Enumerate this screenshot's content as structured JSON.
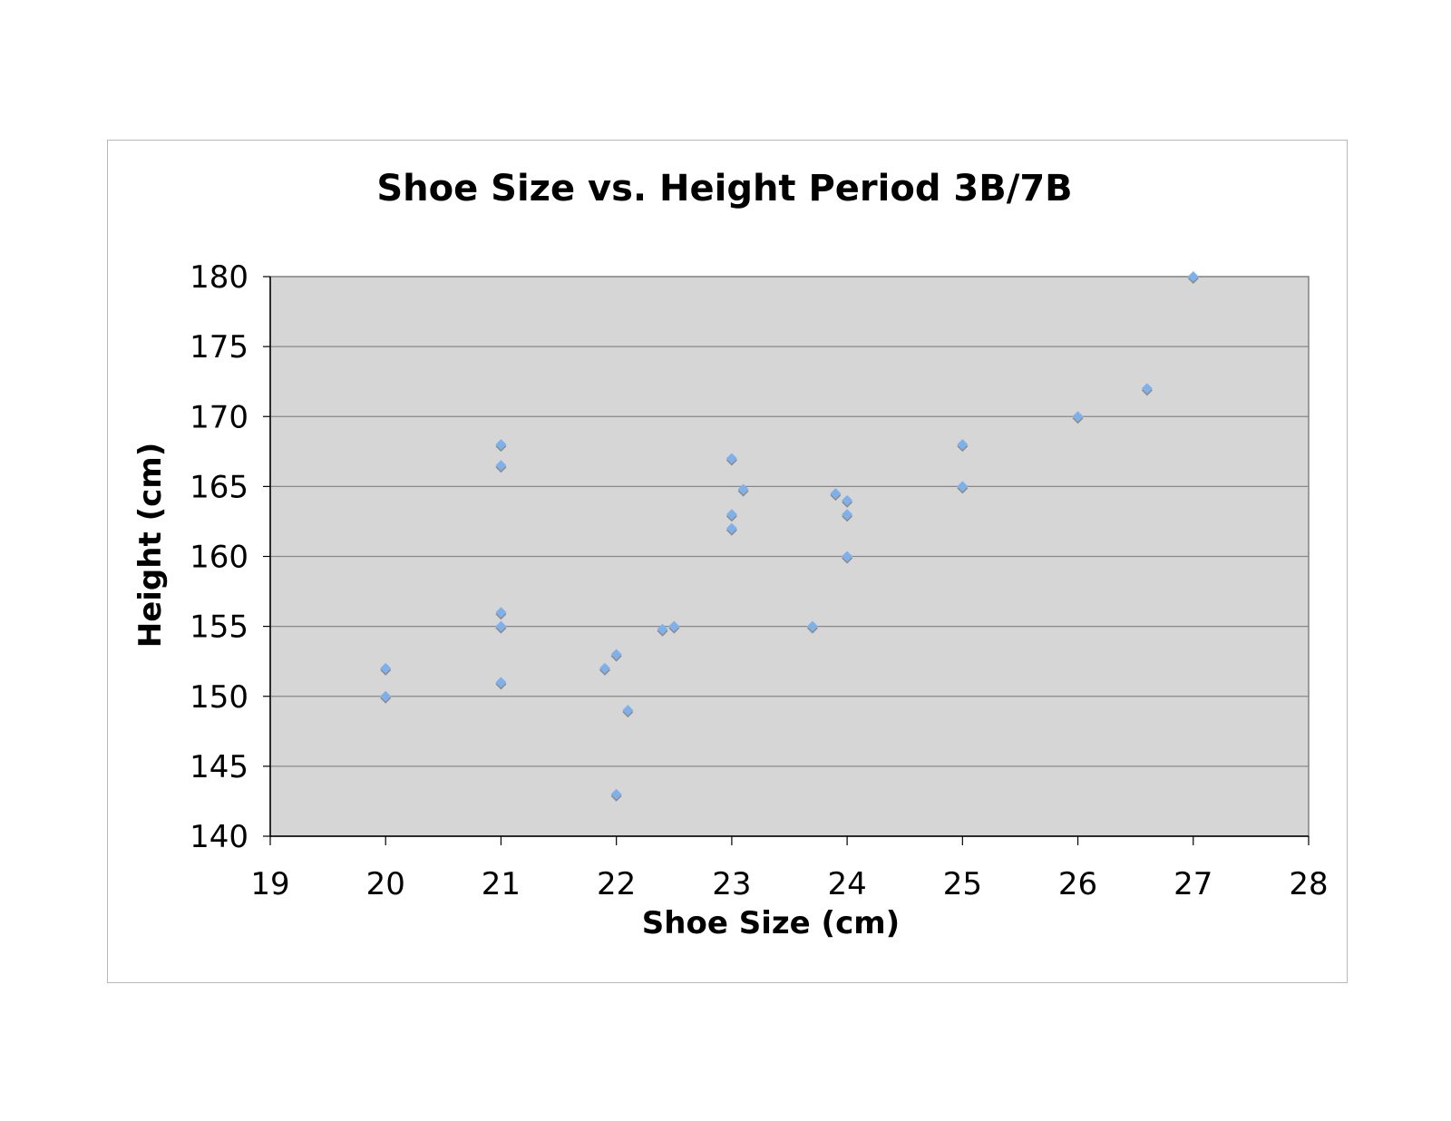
{
  "chart_data": {
    "type": "scatter",
    "title": "Shoe Size vs. Height Period 3B/7B",
    "xlabel": "Shoe Size (cm)",
    "ylabel": "Height (cm)",
    "xlim": [
      19,
      28
    ],
    "ylim": [
      140,
      180
    ],
    "x_ticks": [
      "19",
      "20",
      "21",
      "22",
      "23",
      "24",
      "25",
      "26",
      "27",
      "28"
    ],
    "y_ticks": [
      "140",
      "145",
      "150",
      "155",
      "160",
      "165",
      "170",
      "175",
      "180"
    ],
    "grid": "horizontal",
    "legend": "none",
    "colors": {
      "plot_background": "#d6d6d6",
      "marker": "#7fb0ea",
      "marker_shadow": "#8a8a8a",
      "gridline": "#888888"
    },
    "points": [
      {
        "x": 20,
        "y": 152
      },
      {
        "x": 20,
        "y": 150
      },
      {
        "x": 21,
        "y": 168
      },
      {
        "x": 21,
        "y": 166.5
      },
      {
        "x": 21,
        "y": 156
      },
      {
        "x": 21,
        "y": 155
      },
      {
        "x": 21,
        "y": 151
      },
      {
        "x": 21.9,
        "y": 152
      },
      {
        "x": 22,
        "y": 153
      },
      {
        "x": 22,
        "y": 143
      },
      {
        "x": 22.1,
        "y": 149
      },
      {
        "x": 22.4,
        "y": 154.8
      },
      {
        "x": 22.5,
        "y": 155
      },
      {
        "x": 23,
        "y": 167
      },
      {
        "x": 23,
        "y": 163
      },
      {
        "x": 23,
        "y": 162
      },
      {
        "x": 23.1,
        "y": 164.8
      },
      {
        "x": 23.7,
        "y": 155
      },
      {
        "x": 23.9,
        "y": 164.5
      },
      {
        "x": 24,
        "y": 164
      },
      {
        "x": 24,
        "y": 163
      },
      {
        "x": 24,
        "y": 160
      },
      {
        "x": 25,
        "y": 168
      },
      {
        "x": 25,
        "y": 165
      },
      {
        "x": 26,
        "y": 170
      },
      {
        "x": 26.6,
        "y": 172
      },
      {
        "x": 27,
        "y": 180
      }
    ]
  }
}
